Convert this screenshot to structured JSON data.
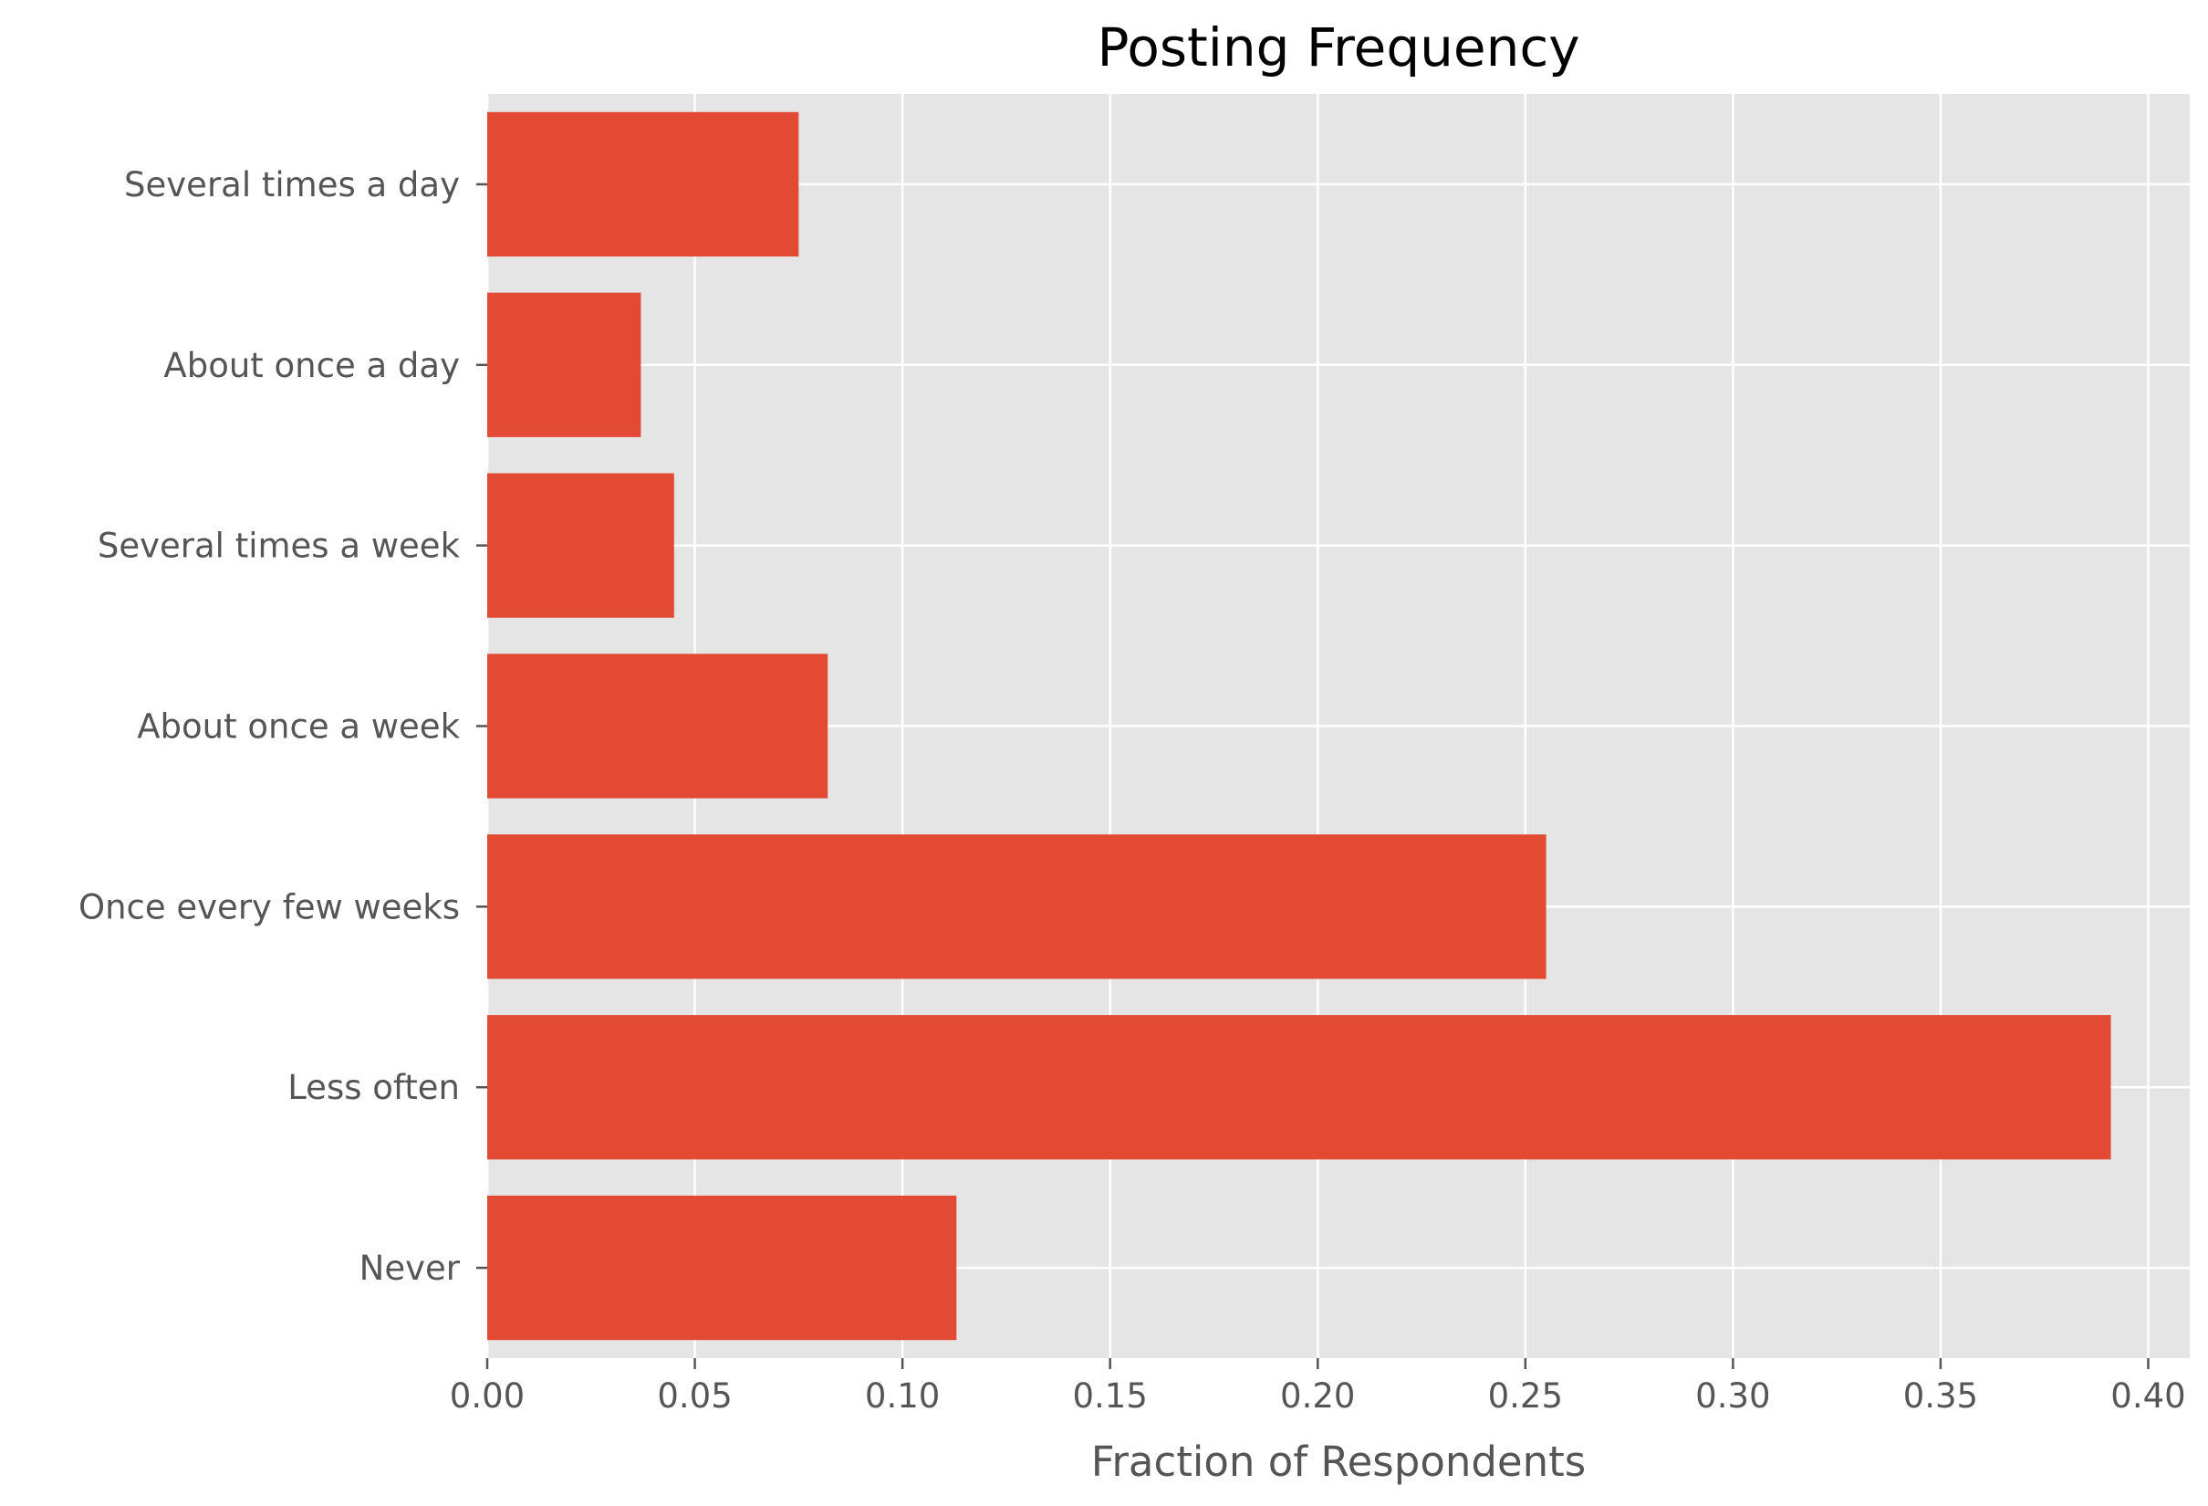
{
  "chart_data": {
    "type": "bar",
    "orientation": "horizontal",
    "title": "Posting Frequency",
    "xlabel": "Fraction of Respondents",
    "ylabel": "",
    "categories": [
      "Several times a day",
      "About once a day",
      "Several times a week",
      "About once a week",
      "Once every few weeks",
      "Less often",
      "Never"
    ],
    "values": [
      0.075,
      0.037,
      0.045,
      0.082,
      0.255,
      0.391,
      0.113
    ],
    "xlim": [
      0,
      0.41
    ],
    "xticks": [
      0.0,
      0.05,
      0.1,
      0.15,
      0.2,
      0.25,
      0.3,
      0.35,
      0.4
    ],
    "xtick_labels": [
      "0.00",
      "0.05",
      "0.10",
      "0.15",
      "0.20",
      "0.25",
      "0.30",
      "0.35",
      "0.40"
    ],
    "grid": true,
    "legend": "none",
    "colors": {
      "bar": "#E24A33",
      "plot_background": "#E5E5E5",
      "grid": "#FFFFFF",
      "tick_text": "#555555",
      "title_text": "#000000"
    }
  }
}
